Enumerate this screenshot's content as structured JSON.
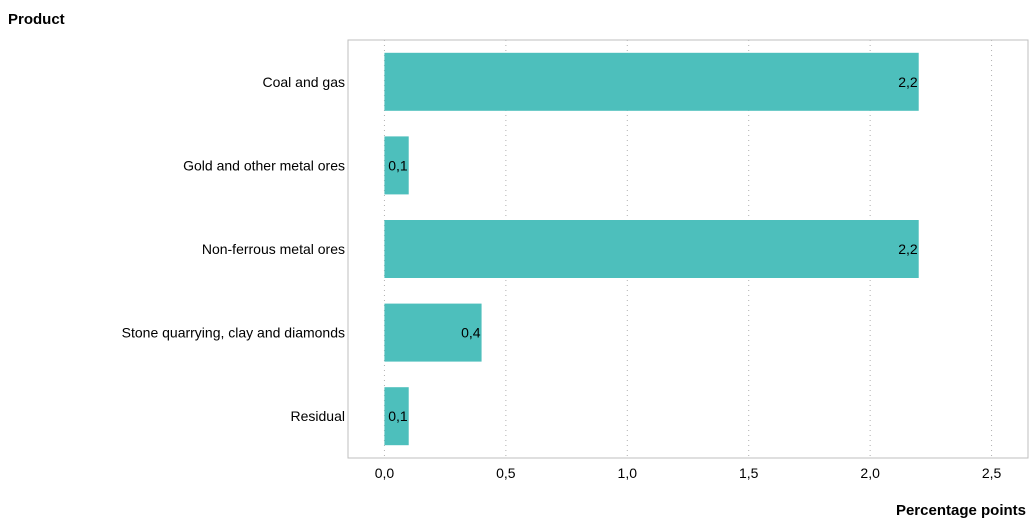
{
  "chart_data": {
    "type": "bar",
    "orientation": "horizontal",
    "title": "Product",
    "xlabel": "Percentage points",
    "ylabel": "Product",
    "categories": [
      "Coal and gas",
      "Gold and other metal ores",
      "Non-ferrous metal ores",
      "Stone quarrying, clay and diamonds",
      "Residual"
    ],
    "values": [
      2.2,
      0.1,
      2.2,
      0.4,
      0.1
    ],
    "data_labels": [
      "2,2",
      "0,1",
      "2,2",
      "0,4",
      "0,1"
    ],
    "xlim": [
      -0.15,
      2.65
    ],
    "xticks": [
      0.0,
      0.5,
      1.0,
      1.5,
      2.0,
      2.5
    ],
    "xtick_labels": [
      "0,0",
      "0,5",
      "1,0",
      "1,5",
      "2,0",
      "2,5"
    ],
    "grid": "vertical dotted",
    "legend": "none",
    "colors": {
      "bar": "#4dbfbc",
      "frame": "#bfbfbf",
      "grid": "#b0b0b0",
      "text": "#000000"
    }
  }
}
